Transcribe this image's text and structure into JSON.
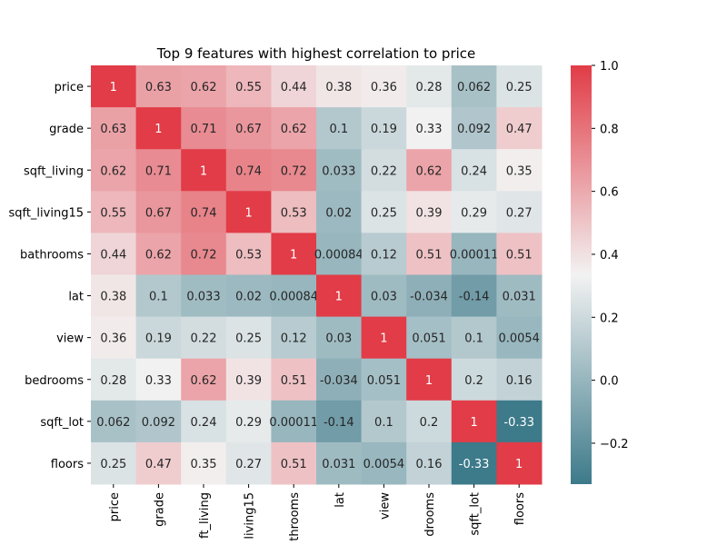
{
  "chart_data": {
    "type": "heatmap",
    "title": "Top 9 features with highest correlation to price",
    "row_labels": [
      "price",
      "grade",
      "sqft_living",
      "sqft_living15",
      "bathrooms",
      "lat",
      "view",
      "bedrooms",
      "sqft_lot",
      "floors"
    ],
    "col_labels": [
      "price",
      "grade",
      "ft_living",
      "living15",
      "throoms",
      "lat",
      "view",
      "drooms",
      "sqft_lot",
      "floors"
    ],
    "values": [
      [
        1,
        0.63,
        0.62,
        0.55,
        0.44,
        0.38,
        0.36,
        0.28,
        0.062,
        0.25
      ],
      [
        0.63,
        1,
        0.71,
        0.67,
        0.62,
        0.1,
        0.19,
        0.33,
        0.092,
        0.47
      ],
      [
        0.62,
        0.71,
        1,
        0.74,
        0.72,
        0.033,
        0.22,
        0.62,
        0.24,
        0.35
      ],
      [
        0.55,
        0.67,
        0.74,
        1,
        0.53,
        0.02,
        0.25,
        0.39,
        0.29,
        0.27
      ],
      [
        0.44,
        0.62,
        0.72,
        0.53,
        1,
        0.00084,
        0.12,
        0.51,
        0.00011,
        0.51
      ],
      [
        0.38,
        0.1,
        0.033,
        0.02,
        0.00084,
        1,
        0.03,
        -0.034,
        -0.14,
        0.031
      ],
      [
        0.36,
        0.19,
        0.22,
        0.25,
        0.12,
        0.03,
        1,
        0.051,
        0.1,
        0.0054
      ],
      [
        0.28,
        0.33,
        0.62,
        0.39,
        0.51,
        -0.034,
        0.051,
        1,
        0.2,
        0.16
      ],
      [
        0.062,
        0.092,
        0.24,
        0.29,
        0.00011,
        -0.14,
        0.1,
        0.2,
        1,
        -0.33
      ],
      [
        0.25,
        0.47,
        0.35,
        0.27,
        0.51,
        0.031,
        0.0054,
        0.16,
        -0.33,
        1
      ]
    ],
    "value_range": [
      -0.33,
      1
    ],
    "colorbar": {
      "ticks": [
        1.0,
        0.8,
        0.6,
        0.4,
        0.2,
        0.0,
        -0.2
      ],
      "tick_labels": [
        "1.0",
        "0.8",
        "0.6",
        "0.4",
        "0.2",
        "0.0",
        "−0.2"
      ]
    },
    "colormap": {
      "low": "#3d7a8a",
      "mid": "#f2f2f2",
      "high": "#e13c47"
    }
  }
}
